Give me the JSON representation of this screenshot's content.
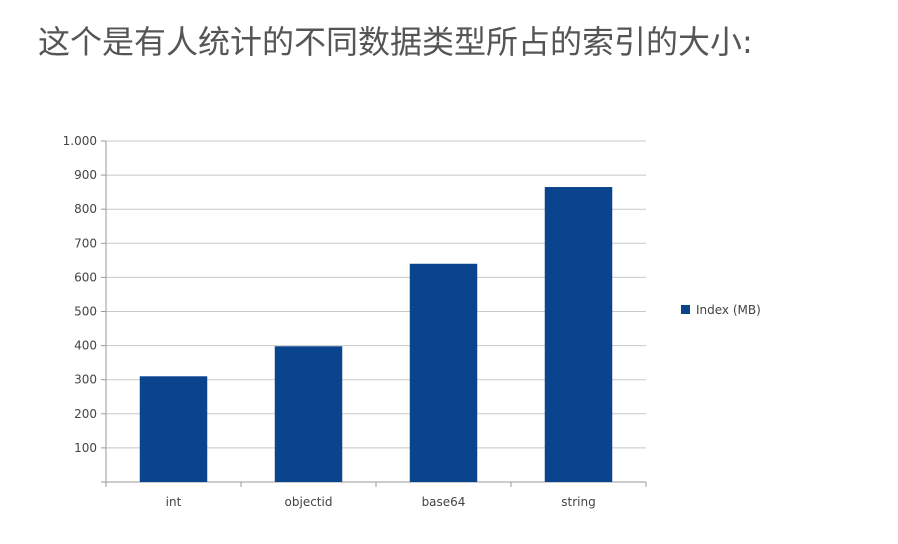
{
  "page": {
    "heading": "这个是有人统计的不同数据类型所占的索引的大小:"
  },
  "colors": {
    "bar": "#0a448c",
    "grid": "#c8c8c8",
    "axis": "#9a9a9a",
    "text": "#444444"
  },
  "chart_data": {
    "type": "bar",
    "categories": [
      "int",
      "objectid",
      "base64",
      "string"
    ],
    "series": [
      {
        "name": "Index (MB)",
        "values": [
          310,
          398,
          640,
          865
        ]
      }
    ],
    "y_ticks": [
      "100",
      "200",
      "300",
      "400",
      "500",
      "600",
      "700",
      "800",
      "900",
      "1.000"
    ],
    "y_tick_values": [
      100,
      200,
      300,
      400,
      500,
      600,
      700,
      800,
      900,
      1000
    ],
    "ylim": [
      0,
      1000
    ],
    "grid": true,
    "legend": "right",
    "title": "",
    "xlabel": "",
    "ylabel": ""
  }
}
